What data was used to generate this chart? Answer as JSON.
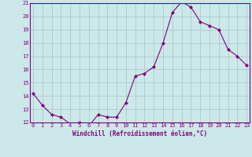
{
  "x": [
    0,
    1,
    2,
    3,
    4,
    5,
    6,
    7,
    8,
    9,
    10,
    11,
    12,
    13,
    14,
    15,
    16,
    17,
    18,
    19,
    20,
    21,
    22,
    23
  ],
  "y": [
    14.2,
    13.3,
    12.6,
    12.4,
    11.9,
    12.0,
    11.7,
    12.6,
    12.4,
    12.4,
    13.5,
    15.5,
    15.7,
    16.2,
    18.0,
    20.3,
    21.1,
    20.7,
    19.6,
    19.3,
    19.0,
    17.5,
    17.0,
    16.3
  ],
  "line_color": "#800080",
  "marker": "D",
  "marker_size": 2,
  "bg_color": "#cce8e8",
  "grid_color": "#aacccc",
  "ylim": [
    12,
    21
  ],
  "yticks": [
    12,
    13,
    14,
    15,
    16,
    17,
    18,
    19,
    20,
    21
  ],
  "xticks": [
    0,
    1,
    2,
    3,
    4,
    5,
    6,
    7,
    8,
    9,
    10,
    11,
    12,
    13,
    14,
    15,
    16,
    17,
    18,
    19,
    20,
    21,
    22,
    23
  ],
  "xlabel": "Windchill (Refroidissement éolien,°C)",
  "xlabel_color": "#800080",
  "tick_color": "#800080",
  "axis_color": "#800080",
  "tick_fontsize": 5,
  "xlabel_fontsize": 5.5
}
